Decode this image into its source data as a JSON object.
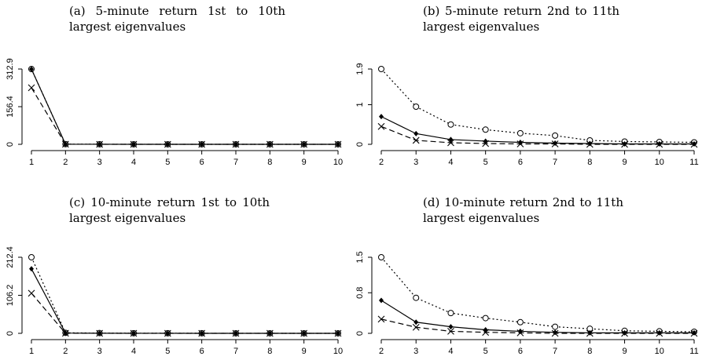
{
  "chart_data": [
    {
      "type": "line",
      "title": "(a) 5-minute return 1st to 10th largest eigenvalues",
      "x": [
        1,
        2,
        3,
        4,
        5,
        6,
        7,
        8,
        9,
        10
      ],
      "xlim": [
        1,
        10
      ],
      "xticks": [
        1,
        2,
        3,
        4,
        5,
        6,
        7,
        8,
        9,
        10
      ],
      "ylim": [
        0,
        312.9
      ],
      "yticks": [
        0,
        156.4,
        312.9
      ],
      "series": [
        {
          "color": "#000000",
          "marker": "circle",
          "dash": "dotted",
          "values": [
            312.9,
            0.8,
            0.3,
            0.2,
            0.1,
            0.1,
            0.1,
            0.1,
            0.1,
            0.1
          ]
        },
        {
          "color": "#000000",
          "marker": "diamond",
          "dash": "solid",
          "values": [
            312.5,
            0.5,
            0.2,
            0.1,
            0.1,
            0.05,
            0.05,
            0.05,
            0.05,
            0.05
          ]
        },
        {
          "color": "#000000",
          "marker": "cross",
          "dash": "dashed",
          "values": [
            235,
            0.3,
            0.1,
            0.05,
            0.05,
            0.02,
            0.02,
            0.02,
            0.02,
            0.02
          ]
        }
      ]
    },
    {
      "type": "line",
      "title": "(b) 5-minute return 2nd to 11th largest eigenvalues",
      "x": [
        2,
        3,
        4,
        5,
        6,
        7,
        8,
        9,
        10,
        11
      ],
      "xlim": [
        2,
        11
      ],
      "xticks": [
        2,
        3,
        4,
        5,
        6,
        7,
        8,
        9,
        10,
        11
      ],
      "ylim": [
        0,
        1.9
      ],
      "yticks": [
        0,
        1,
        1.9
      ],
      "series": [
        {
          "color": "#000000",
          "marker": "circle",
          "dash": "dotted",
          "values": [
            1.9,
            0.95,
            0.5,
            0.37,
            0.28,
            0.22,
            0.1,
            0.07,
            0.06,
            0.05
          ]
        },
        {
          "color": "#000000",
          "marker": "diamond",
          "dash": "solid",
          "values": [
            0.7,
            0.27,
            0.12,
            0.08,
            0.05,
            0.03,
            0.02,
            0.01,
            0.01,
            0.01
          ]
        },
        {
          "color": "#000000",
          "marker": "cross",
          "dash": "dashed",
          "values": [
            0.45,
            0.1,
            0.04,
            0.02,
            0.01,
            0.01,
            0,
            0,
            0,
            0
          ]
        }
      ]
    },
    {
      "type": "line",
      "title": "(c) 10-minute return 1st to 10th largest eigenvalues",
      "x": [
        1,
        2,
        3,
        4,
        5,
        6,
        7,
        8,
        9,
        10
      ],
      "xlim": [
        1,
        10
      ],
      "xticks": [
        1,
        2,
        3,
        4,
        5,
        6,
        7,
        8,
        9,
        10
      ],
      "ylim": [
        0,
        212.4
      ],
      "yticks": [
        0,
        106.2,
        212.4
      ],
      "series": [
        {
          "color": "#000000",
          "marker": "circle",
          "dash": "dotted",
          "values": [
            212.4,
            1.5,
            0.7,
            0.4,
            0.3,
            0.2,
            0.1,
            0.1,
            0.05,
            0.05
          ]
        },
        {
          "color": "#000000",
          "marker": "diamond",
          "dash": "solid",
          "values": [
            180,
            0.7,
            0.2,
            0.1,
            0.1,
            0.05,
            0.05,
            0.05,
            0.05,
            0.05
          ]
        },
        {
          "color": "#000000",
          "marker": "cross",
          "dash": "dashed",
          "values": [
            112,
            0.3,
            0.1,
            0.05,
            0.05,
            0.02,
            0.02,
            0.02,
            0.02,
            0.02
          ]
        }
      ]
    },
    {
      "type": "line",
      "title": "(d) 10-minute return 2nd to 11th largest eigenvalues",
      "x": [
        2,
        3,
        4,
        5,
        6,
        7,
        8,
        9,
        10,
        11
      ],
      "xlim": [
        2,
        11
      ],
      "xticks": [
        2,
        3,
        4,
        5,
        6,
        7,
        8,
        9,
        10,
        11
      ],
      "ylim": [
        0,
        1.5
      ],
      "yticks": [
        0,
        0.8,
        1.5
      ],
      "series": [
        {
          "color": "#000000",
          "marker": "circle",
          "dash": "dotted",
          "values": [
            1.5,
            0.7,
            0.4,
            0.3,
            0.22,
            0.13,
            0.09,
            0.05,
            0.04,
            0.03
          ]
        },
        {
          "color": "#000000",
          "marker": "diamond",
          "dash": "solid",
          "values": [
            0.65,
            0.22,
            0.13,
            0.07,
            0.04,
            0.02,
            0.01,
            0.01,
            0.01,
            0.01
          ]
        },
        {
          "color": "#000000",
          "marker": "cross",
          "dash": "dashed",
          "values": [
            0.28,
            0.12,
            0.04,
            0.02,
            0.01,
            0,
            0,
            0,
            0,
            0
          ]
        }
      ]
    }
  ]
}
